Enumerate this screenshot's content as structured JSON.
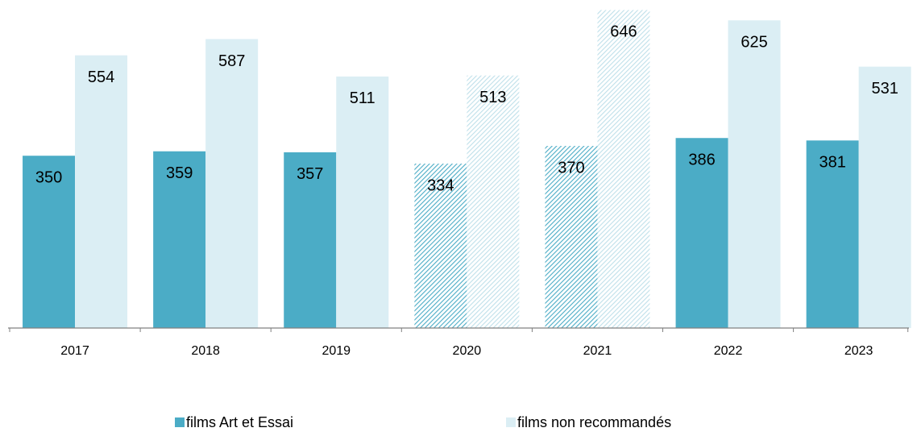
{
  "chart_data": {
    "type": "bar",
    "categories": [
      "2017",
      "2018",
      "2019",
      "2020",
      "2021",
      "2022",
      "2023"
    ],
    "series": [
      {
        "name": "films Art et Essai",
        "color": "#4bacc6",
        "values": [
          350,
          359,
          357,
          334,
          370,
          386,
          381
        ]
      },
      {
        "name": "films non recommandés",
        "color": "#dbeef4",
        "values": [
          554,
          587,
          511,
          513,
          646,
          625,
          531
        ]
      }
    ],
    "hatched": [
      false,
      false,
      false,
      true,
      true,
      false,
      false
    ],
    "ylim": [
      0,
      650
    ],
    "grid": false,
    "legend": "bottom"
  }
}
